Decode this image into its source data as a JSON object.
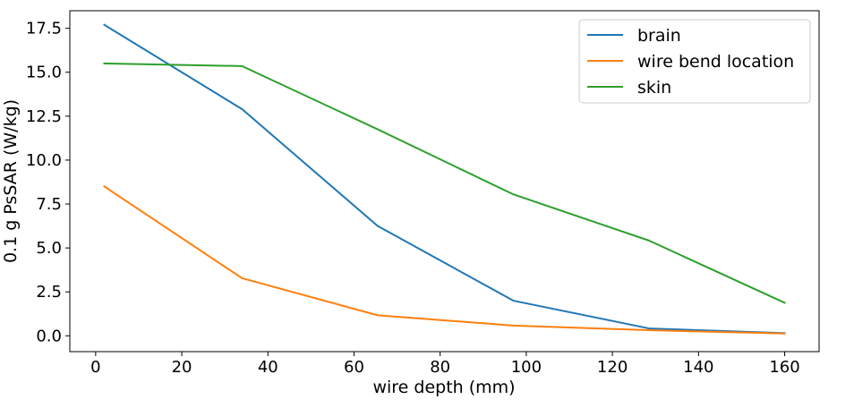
{
  "chart_data": {
    "type": "line",
    "title": "",
    "xlabel": "wire depth (mm)",
    "ylabel": "0.1 g PsSAR (W/kg)",
    "xlim": [
      -6,
      168
    ],
    "ylim": [
      -0.9,
      18.5
    ],
    "xticks": [
      0,
      20,
      40,
      60,
      80,
      100,
      120,
      140,
      160
    ],
    "yticks": [
      0.0,
      2.5,
      5.0,
      7.5,
      10.0,
      12.5,
      15.0,
      17.5
    ],
    "xtick_labels": [
      "0",
      "20",
      "40",
      "60",
      "80",
      "100",
      "120",
      "140",
      "160"
    ],
    "ytick_labels": [
      "0.0",
      "2.5",
      "5.0",
      "7.5",
      "10.0",
      "12.5",
      "15.0",
      "17.5"
    ],
    "grid": false,
    "legend_position": "top-right",
    "series": [
      {
        "name": "brain",
        "color": "#1f77b4",
        "x": [
          2,
          34,
          65.5,
          97,
          128.5,
          160
        ],
        "y": [
          17.7,
          12.9,
          6.25,
          2.0,
          0.42,
          0.15
        ]
      },
      {
        "name": "wire bend location",
        "color": "#ff7f0e",
        "x": [
          2,
          34,
          65.5,
          97,
          128.5,
          160
        ],
        "y": [
          8.5,
          3.28,
          1.17,
          0.58,
          0.32,
          0.13
        ]
      },
      {
        "name": "skin",
        "color": "#2ca02c",
        "x": [
          2,
          34,
          65.5,
          97,
          128.5,
          160
        ],
        "y": [
          15.5,
          15.35,
          11.75,
          8.05,
          5.42,
          1.88
        ]
      }
    ]
  }
}
